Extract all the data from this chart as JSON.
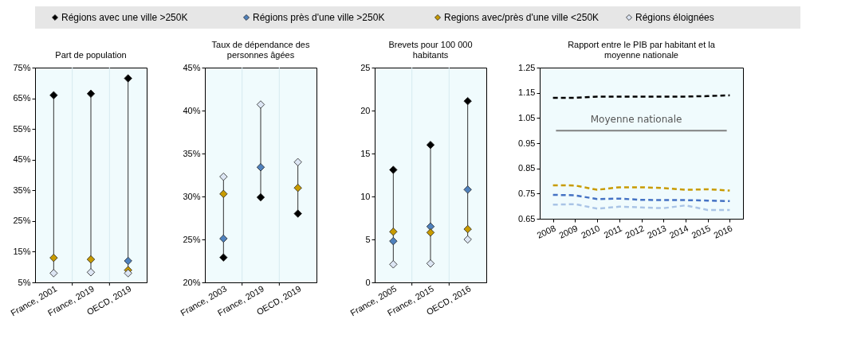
{
  "chart_data": [
    {
      "type": "scatter",
      "title": "Part de population",
      "legend": "top",
      "marker": "diamond",
      "grid": "x",
      "categories": [
        "France, 2001",
        "France, 2019",
        "OECD, 2019"
      ],
      "ylim": [
        5,
        75
      ],
      "yticks": [
        {
          "value": 5,
          "label": "5%"
        },
        {
          "value": 15,
          "label": "15%"
        },
        {
          "value": 25,
          "label": "25%"
        },
        {
          "value": 35,
          "label": "35%"
        },
        {
          "value": 45,
          "label": "45%"
        },
        {
          "value": 55,
          "label": "55%"
        },
        {
          "value": 65,
          "label": "65%"
        },
        {
          "value": 75,
          "label": "75%"
        }
      ],
      "series": [
        {
          "name": "Régions avec une ville >250K",
          "color": "#000000",
          "values": [
            66,
            66.5,
            71.5
          ]
        },
        {
          "name": "Régions près d'une ville >250K",
          "color": "#4f81bd",
          "values": [
            null,
            null,
            12
          ]
        },
        {
          "name": "Regions avec/près d'une ville <250K",
          "color": "#c89b00",
          "values": [
            13,
            12.5,
            9
          ]
        },
        {
          "name": "Régions éloignées",
          "color": "#dde6f4",
          "values": [
            8,
            8.3,
            8
          ]
        }
      ]
    },
    {
      "type": "scatter",
      "title": "Taux de dépendance des personnes âgées",
      "marker": "diamond",
      "grid": "x",
      "categories": [
        "France, 2003",
        "France, 2019",
        "OECD, 2019"
      ],
      "ylim": [
        20,
        45
      ],
      "yticks": [
        {
          "value": 20,
          "label": "20%"
        },
        {
          "value": 25,
          "label": "25%"
        },
        {
          "value": 30,
          "label": "30%"
        },
        {
          "value": 35,
          "label": "35%"
        },
        {
          "value": 40,
          "label": "40%"
        },
        {
          "value": 45,
          "label": "45%"
        }
      ],
      "series": [
        {
          "color": "#000000",
          "values": [
            22.9,
            29.9,
            28
          ]
        },
        {
          "color": "#4f81bd",
          "values": [
            25.1,
            33.4,
            null
          ]
        },
        {
          "color": "#c89b00",
          "values": [
            30.3,
            null,
            31
          ]
        },
        {
          "color": "#dde6f4",
          "values": [
            32.3,
            40.7,
            34
          ]
        }
      ]
    },
    {
      "type": "scatter",
      "title": "Brevets pour 100 000 habitants",
      "marker": "diamond",
      "grid": "x",
      "categories": [
        "France, 2005",
        "France, 2015",
        "OECD, 2016"
      ],
      "ylim": [
        0,
        25
      ],
      "yticks": [
        0,
        5,
        10,
        15,
        20,
        25
      ],
      "series": [
        {
          "color": "#000000",
          "values": [
            13.1,
            16,
            21.1
          ]
        },
        {
          "color": "#4f81bd",
          "values": [
            4.8,
            6.5,
            10.8
          ]
        },
        {
          "color": "#c89b00",
          "values": [
            5.9,
            5.8,
            6.2
          ]
        },
        {
          "color": "#dde6f4",
          "values": [
            2.1,
            2.2,
            5.0
          ]
        }
      ]
    },
    {
      "type": "line",
      "title": "Rapport entre le PIB par habitant et la moyenne nationale",
      "categories": [
        "2008",
        "2009",
        "2010",
        "2011",
        "2012",
        "2013",
        "2014",
        "2015",
        "2016"
      ],
      "ylim": [
        0.65,
        1.25
      ],
      "yticks": [
        {
          "value": 0.65,
          "label": "0.65"
        },
        {
          "value": 0.75,
          "label": "0.75"
        },
        {
          "value": 0.85,
          "label": "0.85"
        },
        {
          "value": 0.95,
          "label": "0.95"
        },
        {
          "value": 1.05,
          "label": "1.05"
        },
        {
          "value": 1.15,
          "label": "1.15"
        },
        {
          "value": 1.25,
          "label": "1.25"
        }
      ],
      "ref_lines": [
        {
          "axis": "y",
          "value": 1.0,
          "label": "Moyenne nationale",
          "color": "#808080"
        }
      ],
      "series": [
        {
          "color": "#000000",
          "line_style": "dashed",
          "values": [
            1.13,
            1.13,
            1.135,
            1.135,
            1.135,
            1.135,
            1.135,
            1.137,
            1.14
          ]
        },
        {
          "color": "#4472c4",
          "line_style": "dashed",
          "values": [
            0.745,
            0.743,
            0.728,
            0.73,
            0.725,
            0.724,
            0.724,
            0.722,
            0.72
          ]
        },
        {
          "color": "#c89b00",
          "line_style": "dashed",
          "values": [
            0.783,
            0.782,
            0.765,
            0.775,
            0.775,
            0.772,
            0.765,
            0.767,
            0.762
          ]
        },
        {
          "color": "#a9c4e6",
          "line_style": "dashed",
          "values": [
            0.706,
            0.708,
            0.69,
            0.698,
            0.695,
            0.692,
            0.703,
            0.685,
            0.685
          ]
        }
      ]
    }
  ]
}
